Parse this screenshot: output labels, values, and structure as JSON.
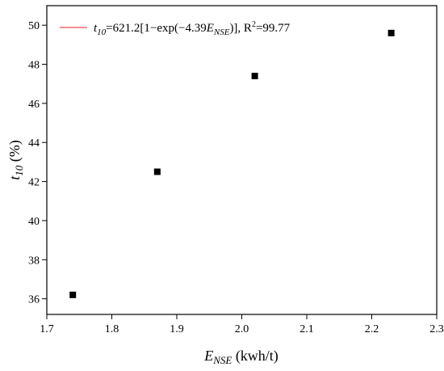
{
  "chart_data": {
    "type": "scatter",
    "xlabel": {
      "main": "E",
      "sub": "NSE",
      "rest": " (kwh/t)"
    },
    "ylabel": {
      "main": "t",
      "sub": "10",
      "rest": " (%)"
    },
    "xlim": [
      1.7,
      2.3
    ],
    "ylim": [
      35.2,
      51.0
    ],
    "x_ticks": [
      "1.7",
      "1.8",
      "1.9",
      "2.0",
      "2.1",
      "2.2",
      "2.3"
    ],
    "y_ticks": [
      "36",
      "38",
      "40",
      "42",
      "44",
      "46",
      "48",
      "50"
    ],
    "grid": false,
    "series": [
      {
        "marker": "square",
        "color": "#000000",
        "x": [
          1.74,
          1.87,
          2.02,
          2.23
        ],
        "y": [
          36.2,
          42.5,
          47.4,
          49.6
        ]
      }
    ],
    "fit": {
      "color": "#e8211f",
      "equation": {
        "a": 621.2,
        "b": -4.39,
        "x_range": [
          1.74,
          2.23
        ]
      }
    },
    "legend": {
      "position": "top-left",
      "parts": [
        {
          "t": "t",
          "s": "italic"
        },
        {
          "t": "10",
          "s": "italic-sub"
        },
        {
          "t": "=621.2[1−exp(−4.39",
          "s": "normal"
        },
        {
          "t": "E",
          "s": "italic"
        },
        {
          "t": "NSE",
          "s": "italic-sub"
        },
        {
          "t": ")], R",
          "s": "normal"
        },
        {
          "t": "2",
          "s": "sup"
        },
        {
          "t": "=99.77",
          "s": "normal"
        }
      ]
    }
  }
}
